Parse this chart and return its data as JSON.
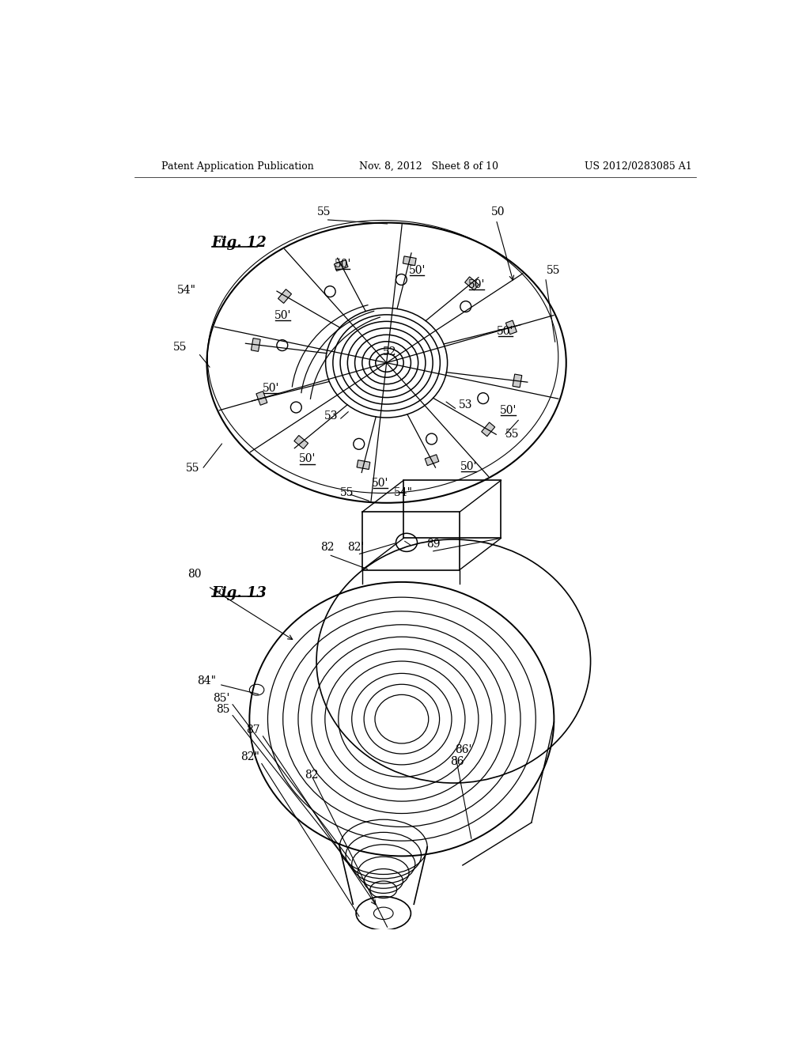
{
  "bg_color": "#ffffff",
  "line_color": "#000000",
  "header_left": "Patent Application Publication",
  "header_mid": "Nov. 8, 2012   Sheet 8 of 10",
  "header_right": "US 2012/0283085 A1",
  "fig12_label": "Fig. 12",
  "fig13_label": "Fig. 13"
}
